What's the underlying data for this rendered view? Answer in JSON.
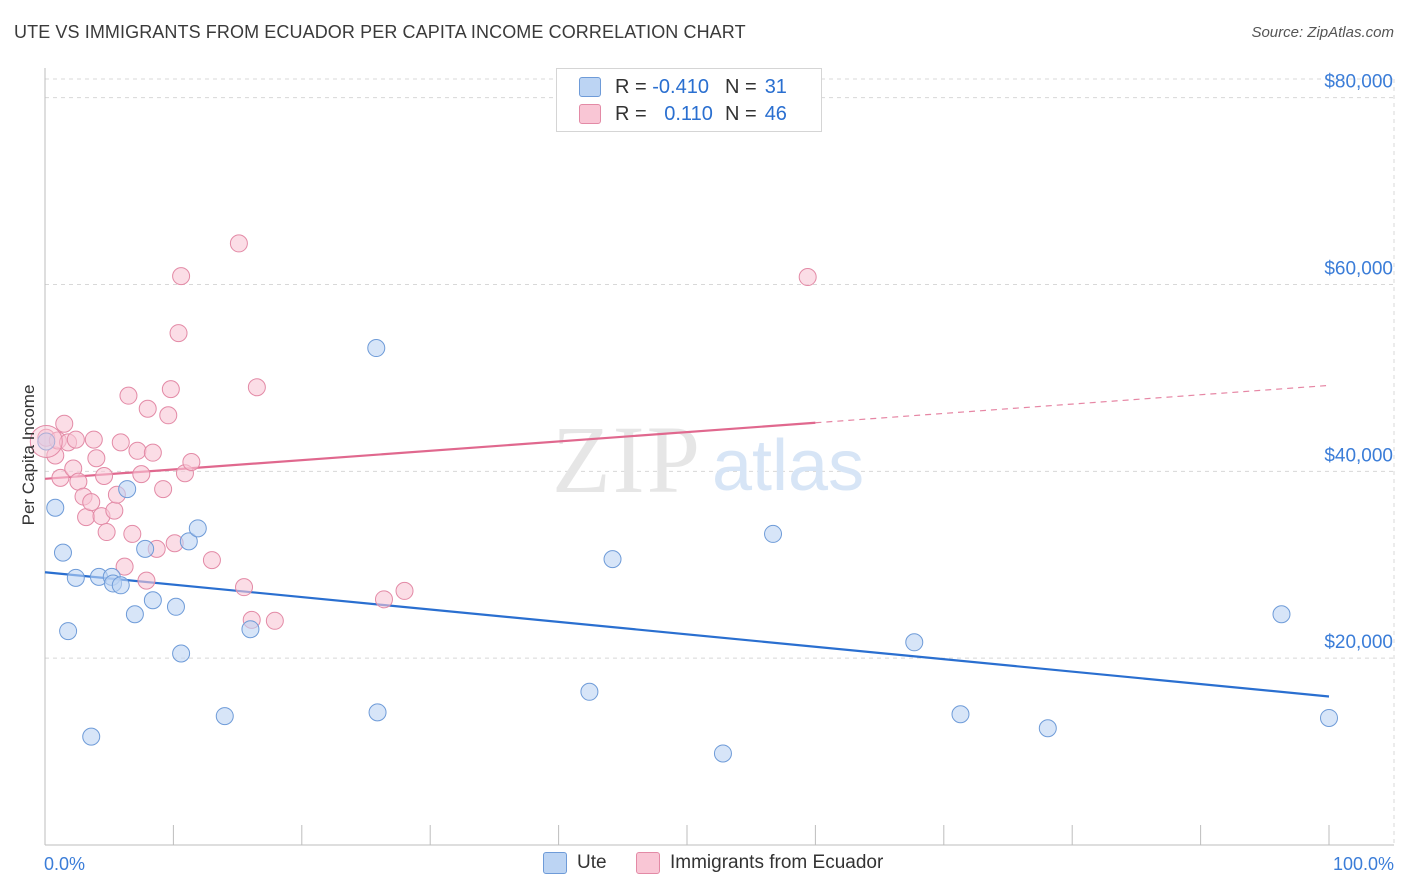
{
  "title": "UTE VS IMMIGRANTS FROM ECUADOR PER CAPITA INCOME CORRELATION CHART",
  "source": "Source: ZipAtlas.com",
  "watermark": {
    "zip": "ZIP",
    "atlas": "atlas"
  },
  "colors": {
    "ute": "#2a6fd0",
    "ute_fill": "#bcd4f3",
    "ecuador": "#e0688e",
    "ecuador_fill": "#f9c6d5",
    "axis_label": "#3b7dd8",
    "grid": "#d8d8d8"
  },
  "legend_top": {
    "rows": [
      {
        "series": "Ute",
        "r_label": "R =",
        "r_value": "-0.410",
        "n_label": "N =",
        "n_value": "31"
      },
      {
        "series": "Immigrants from Ecuador",
        "r_label": "R =",
        "r_value": "0.110",
        "n_label": "N =",
        "n_value": "46"
      }
    ]
  },
  "legend_bottom": {
    "items": [
      "Ute",
      "Immigrants from Ecuador"
    ]
  },
  "chart_data": {
    "type": "scatter",
    "title": "UTE VS IMMIGRANTS FROM ECUADOR PER CAPITA INCOME CORRELATION CHART",
    "xlabel": "",
    "ylabel": "Per Capita Income",
    "xlim": [
      0,
      100
    ],
    "ylim": [
      0,
      82000
    ],
    "x_tick_labels": [
      "0.0%",
      "100.0%"
    ],
    "y_ticks": [
      20000,
      40000,
      60000,
      80000
    ],
    "y_tick_labels": [
      "$20,000",
      "$40,000",
      "$60,000",
      "$80,000"
    ],
    "grid": true,
    "series": [
      {
        "name": "Ute",
        "r": -0.41,
        "n": 31,
        "points": [
          [
            0.1,
            43200
          ],
          [
            0.8,
            36100
          ],
          [
            1.4,
            31300
          ],
          [
            1.8,
            22900
          ],
          [
            2.4,
            28600
          ],
          [
            3.6,
            11600
          ],
          [
            4.2,
            28700
          ],
          [
            5.2,
            28700
          ],
          [
            5.3,
            28000
          ],
          [
            5.9,
            27800
          ],
          [
            6.4,
            38100
          ],
          [
            7.0,
            24700
          ],
          [
            7.8,
            31700
          ],
          [
            8.4,
            26200
          ],
          [
            10.2,
            25500
          ],
          [
            10.6,
            20500
          ],
          [
            11.2,
            32500
          ],
          [
            11.9,
            33900
          ],
          [
            14.0,
            13800
          ],
          [
            16.0,
            23100
          ],
          [
            25.8,
            53200
          ],
          [
            25.9,
            14200
          ],
          [
            42.4,
            16400
          ],
          [
            44.2,
            30600
          ],
          [
            52.8,
            9800
          ],
          [
            56.7,
            33300
          ],
          [
            67.7,
            21700
          ],
          [
            71.3,
            14000
          ],
          [
            78.1,
            12500
          ],
          [
            96.3,
            24700
          ],
          [
            100.0,
            13600
          ]
        ],
        "trend": {
          "x_start": 0,
          "y_start": 29200,
          "x_end": 100,
          "y_end": 15900
        }
      },
      {
        "name": "Immigrants from Ecuador",
        "r": 0.11,
        "n": 46,
        "points": [
          [
            0.1,
            43600
          ],
          [
            0.8,
            41700
          ],
          [
            1.0,
            43300
          ],
          [
            1.2,
            39300
          ],
          [
            1.5,
            45100
          ],
          [
            1.8,
            43100
          ],
          [
            2.2,
            40300
          ],
          [
            2.4,
            43400
          ],
          [
            2.6,
            38900
          ],
          [
            3.0,
            37300
          ],
          [
            3.2,
            35100
          ],
          [
            3.6,
            36700
          ],
          [
            3.8,
            43400
          ],
          [
            4.0,
            41400
          ],
          [
            4.4,
            35200
          ],
          [
            4.6,
            39500
          ],
          [
            4.8,
            33500
          ],
          [
            5.4,
            35800
          ],
          [
            5.6,
            37500
          ],
          [
            5.9,
            43100
          ],
          [
            6.2,
            29800
          ],
          [
            6.5,
            48100
          ],
          [
            6.8,
            33300
          ],
          [
            7.2,
            42200
          ],
          [
            7.5,
            39700
          ],
          [
            7.9,
            28300
          ],
          [
            8.0,
            46700
          ],
          [
            8.4,
            42000
          ],
          [
            8.7,
            31700
          ],
          [
            9.2,
            38100
          ],
          [
            9.6,
            46000
          ],
          [
            9.8,
            48800
          ],
          [
            10.1,
            32300
          ],
          [
            10.4,
            54800
          ],
          [
            10.6,
            60900
          ],
          [
            10.9,
            39800
          ],
          [
            11.4,
            41000
          ],
          [
            13.0,
            30500
          ],
          [
            15.1,
            64400
          ],
          [
            15.5,
            27600
          ],
          [
            16.1,
            24100
          ],
          [
            16.5,
            49000
          ],
          [
            17.9,
            24000
          ],
          [
            26.4,
            26300
          ],
          [
            28.0,
            27200
          ],
          [
            59.4,
            60800
          ]
        ],
        "trend": {
          "x_start": 0,
          "y_start": 39200,
          "x_end": 60,
          "y_end": 45200
        },
        "trend_dashed": {
          "x_start": 60,
          "y_start": 45200,
          "x_end": 100,
          "y_end": 49200
        }
      }
    ]
  }
}
